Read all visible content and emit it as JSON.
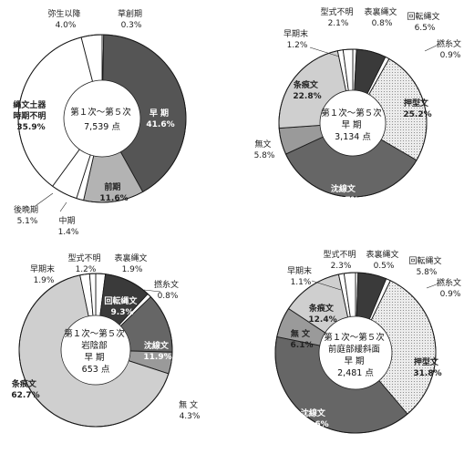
{
  "chart_data": [
    {
      "type": "pie",
      "center_text": [
        "第１次～第５次",
        "7,539 点"
      ],
      "slices": [
        {
          "label": "草創期",
          "value": 0.3,
          "value_text": "0.3%",
          "color": "#ffffff",
          "text_color": "#222",
          "label_mode": "outside"
        },
        {
          "label": "早 期",
          "value": 41.6,
          "value_text": "41.6%",
          "color": "#555555",
          "text_color": "#ffffff",
          "label_mode": "inside"
        },
        {
          "label": "前期",
          "value": 11.6,
          "value_text": "11.6%",
          "color": "#b3b3b3",
          "text_color": "#222",
          "label_mode": "inside"
        },
        {
          "label": "中期",
          "value": 1.4,
          "value_text": "1.4%",
          "color": "#ffffff",
          "text_color": "#222",
          "label_mode": "outside"
        },
        {
          "label": "後晩期",
          "value": 5.1,
          "value_text": "5.1%",
          "color": "#ffffff",
          "text_color": "#222",
          "label_mode": "outside"
        },
        {
          "label": "縄文土器時期不明",
          "value": 35.9,
          "value_text": "35.9%",
          "color": "#ffffff",
          "text_color": "#222",
          "label_mode": "inside"
        },
        {
          "label": "弥生以降",
          "value": 4.0,
          "value_text": "4.0%",
          "color": "#ffffff",
          "text_color": "#222",
          "label_mode": "outside"
        }
      ]
    },
    {
      "type": "pie",
      "center_text": [
        "第１次～第５次",
        "早 期",
        "3,134 点"
      ],
      "slices": [
        {
          "label": "表裏縄文",
          "value": 0.8,
          "value_text": "0.8%",
          "color": "#ffffff",
          "text_color": "#222",
          "label_mode": "outside"
        },
        {
          "label": "回転縄文",
          "value": 6.5,
          "value_text": "6.5%",
          "color": "#3a3a3a",
          "text_color": "#222",
          "label_mode": "outside"
        },
        {
          "label": "撚糸文",
          "value": 0.9,
          "value_text": "0.9%",
          "color": "#ffffff",
          "text_color": "#222",
          "label_mode": "outside"
        },
        {
          "label": "押型文",
          "value": 25.2,
          "value_text": "25.2%",
          "color": "#e4e4e4",
          "text_color": "#222",
          "label_mode": "inside",
          "dotted": true
        },
        {
          "label": "沈線文",
          "value": 34.7,
          "value_text": "34.7%",
          "color": "#666666",
          "text_color": "#ffffff",
          "label_mode": "inside"
        },
        {
          "label": "無文",
          "value": 5.8,
          "value_text": "5.8%",
          "color": "#9a9a9a",
          "text_color": "#222",
          "label_mode": "outside"
        },
        {
          "label": "条痕文",
          "value": 22.8,
          "value_text": "22.8%",
          "color": "#cfcfcf",
          "text_color": "#222",
          "label_mode": "inside"
        },
        {
          "label": "早期末",
          "value": 1.2,
          "value_text": "1.2%",
          "color": "#ffffff",
          "text_color": "#222",
          "label_mode": "outside"
        },
        {
          "label": "型式不明",
          "value": 2.1,
          "value_text": "2.1%",
          "color": "#ffffff",
          "text_color": "#222",
          "label_mode": "outside"
        }
      ]
    },
    {
      "type": "pie",
      "center_text": [
        "第１次～第５次",
        "岩陰部",
        "早 期",
        "653 点"
      ],
      "slices": [
        {
          "label": "表裏縄文",
          "value": 1.9,
          "value_text": "1.9%",
          "color": "#ffffff",
          "text_color": "#222",
          "label_mode": "outside"
        },
        {
          "label": "回転縄文",
          "value": 9.3,
          "value_text": "9.3%",
          "color": "#3a3a3a",
          "text_color": "#ffffff",
          "label_mode": "inside"
        },
        {
          "label": "撚糸文",
          "value": 0.8,
          "value_text": "0.8%",
          "color": "#ffffff",
          "text_color": "#222",
          "label_mode": "outside"
        },
        {
          "label": "沈線文",
          "value": 11.9,
          "value_text": "11.9%",
          "color": "#666666",
          "text_color": "#ffffff",
          "label_mode": "inside"
        },
        {
          "label": "無 文",
          "value": 4.3,
          "value_text": "4.3%",
          "color": "#9a9a9a",
          "text_color": "#222",
          "label_mode": "outside"
        },
        {
          "label": "条痕文",
          "value": 62.7,
          "value_text": "62.7%",
          "color": "#cfcfcf",
          "text_color": "#222",
          "label_mode": "inside"
        },
        {
          "label": "早期末",
          "value": 1.9,
          "value_text": "1.9%",
          "color": "#ffffff",
          "text_color": "#222",
          "label_mode": "outside"
        },
        {
          "label": "型式不明",
          "value": 1.2,
          "value_text": "1.2%",
          "color": "#ffffff",
          "text_color": "#222",
          "label_mode": "outside"
        }
      ]
    },
    {
      "type": "pie",
      "center_text": [
        "第１次～第５次",
        "前庭部緩斜面",
        "早 期",
        "2,481 点"
      ],
      "slices": [
        {
          "label": "表裏縄文",
          "value": 0.5,
          "value_text": "0.5%",
          "color": "#ffffff",
          "text_color": "#222",
          "label_mode": "outside"
        },
        {
          "label": "回転縄文",
          "value": 5.8,
          "value_text": "5.8%",
          "color": "#3a3a3a",
          "text_color": "#222",
          "label_mode": "outside"
        },
        {
          "label": "撚糸文",
          "value": 0.9,
          "value_text": "0.9%",
          "color": "#ffffff",
          "text_color": "#222",
          "label_mode": "outside"
        },
        {
          "label": "押型文",
          "value": 31.8,
          "value_text": "31.8%",
          "color": "#e4e4e4",
          "text_color": "#222",
          "label_mode": "inside",
          "dotted": true
        },
        {
          "label": "沈線文",
          "value": 39.6,
          "value_text": "39.6%",
          "color": "#666666",
          "text_color": "#ffffff",
          "label_mode": "inside"
        },
        {
          "label": "無 文",
          "value": 6.1,
          "value_text": "6.1%",
          "color": "#9a9a9a",
          "text_color": "#222",
          "label_mode": "inside"
        },
        {
          "label": "条痕文",
          "value": 12.4,
          "value_text": "12.4%",
          "color": "#cfcfcf",
          "text_color": "#222",
          "label_mode": "inside"
        },
        {
          "label": "早期末",
          "value": 1.1,
          "value_text": "1.1%",
          "color": "#ffffff",
          "text_color": "#222",
          "label_mode": "outside"
        },
        {
          "label": "型式不明",
          "value": 2.3,
          "value_text": "2.3%",
          "color": "#ffffff",
          "text_color": "#222",
          "label_mode": "outside"
        }
      ]
    }
  ]
}
